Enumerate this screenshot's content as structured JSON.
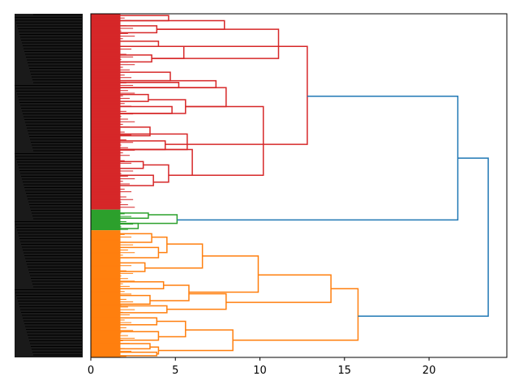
{
  "chart_data": {
    "type": "dendrogram",
    "orientation": "right",
    "title": "",
    "xlabel": "",
    "ylabel": "",
    "xlim": [
      0,
      24.6
    ],
    "xticks": [
      0,
      5,
      10,
      15,
      20
    ],
    "xtick_labels": [
      "0",
      "5",
      "10",
      "15",
      "20"
    ],
    "leaf_labels_legible": false,
    "clusters": [
      {
        "name": "cluster-red",
        "color": "#d62728",
        "leaf_span": [
          0.0,
          0.57
        ]
      },
      {
        "name": "cluster-green",
        "color": "#2ca02c",
        "leaf_span": [
          0.57,
          0.63
        ]
      },
      {
        "name": "cluster-orange",
        "color": "#ff7f0e",
        "leaf_span": [
          0.63,
          1.0
        ]
      }
    ],
    "above_threshold_color": "#1f77b4",
    "merges": [
      {
        "name": "red-a1",
        "color": "#d62728",
        "height": 4.6,
        "children": [
          0.005,
          0.02
        ]
      },
      {
        "name": "red-a2",
        "color": "#d62728",
        "height": 3.9,
        "children": [
          0.035,
          0.055
        ]
      },
      {
        "name": "red-a",
        "color": "#d62728",
        "height": 7.9,
        "children": [
          0.02,
          0.045
        ]
      },
      {
        "name": "red-b1",
        "color": "#d62728",
        "height": 4.0,
        "children": [
          0.08,
          0.095
        ]
      },
      {
        "name": "red-b2",
        "color": "#d62728",
        "height": 3.6,
        "children": [
          0.12,
          0.14
        ]
      },
      {
        "name": "red-b",
        "color": "#d62728",
        "height": 5.5,
        "children": [
          0.095,
          0.13
        ]
      },
      {
        "name": "red-ab",
        "color": "#d62728",
        "height": 11.1,
        "children": [
          0.045,
          0.13
        ]
      },
      {
        "name": "red-c1",
        "color": "#d62728",
        "height": 4.7,
        "children": [
          0.17,
          0.195
        ]
      },
      {
        "name": "red-c2",
        "color": "#d62728",
        "height": 5.2,
        "children": [
          0.2,
          0.215
        ]
      },
      {
        "name": "red-c",
        "color": "#d62728",
        "height": 7.4,
        "children": [
          0.195,
          0.215
        ]
      },
      {
        "name": "red-d1",
        "color": "#d62728",
        "height": 3.4,
        "children": [
          0.235,
          0.255
        ]
      },
      {
        "name": "red-d2",
        "color": "#d62728",
        "height": 4.8,
        "children": [
          0.27,
          0.29
        ]
      },
      {
        "name": "red-d",
        "color": "#d62728",
        "height": 5.6,
        "children": [
          0.25,
          0.29
        ]
      },
      {
        "name": "red-cd",
        "color": "#d62728",
        "height": 8.0,
        "children": [
          0.215,
          0.27
        ]
      },
      {
        "name": "red-e1",
        "color": "#d62728",
        "height": 3.5,
        "children": [
          0.33,
          0.355
        ]
      },
      {
        "name": "red-e2",
        "color": "#d62728",
        "height": 4.4,
        "children": [
          0.37,
          0.395
        ]
      },
      {
        "name": "red-e",
        "color": "#d62728",
        "height": 5.7,
        "children": [
          0.35,
          0.395
        ]
      },
      {
        "name": "red-f1",
        "color": "#d62728",
        "height": 3.1,
        "children": [
          0.43,
          0.45
        ]
      },
      {
        "name": "red-f2",
        "color": "#d62728",
        "height": 3.7,
        "children": [
          0.47,
          0.5
        ]
      },
      {
        "name": "red-f",
        "color": "#d62728",
        "height": 4.6,
        "children": [
          0.44,
          0.49
        ]
      },
      {
        "name": "red-ef",
        "color": "#d62728",
        "height": 6.0,
        "children": [
          0.395,
          0.47
        ]
      },
      {
        "name": "red-cdef",
        "color": "#d62728",
        "height": 10.2,
        "children": [
          0.27,
          0.47
        ]
      },
      {
        "name": "red-root",
        "color": "#d62728",
        "height": 12.8,
        "children": [
          0.095,
          0.38
        ]
      },
      {
        "name": "green-1",
        "color": "#2ca02c",
        "height": 3.4,
        "children": [
          0.58,
          0.595
        ]
      },
      {
        "name": "green-2",
        "color": "#2ca02c",
        "height": 2.8,
        "children": [
          0.61,
          0.625
        ]
      },
      {
        "name": "green-root",
        "color": "#2ca02c",
        "height": 5.1,
        "children": [
          0.585,
          0.61
        ]
      },
      {
        "name": "orange-a1",
        "color": "#ff7f0e",
        "height": 3.6,
        "children": [
          0.64,
          0.665
        ]
      },
      {
        "name": "orange-a2",
        "color": "#ff7f0e",
        "height": 4.0,
        "children": [
          0.68,
          0.71
        ]
      },
      {
        "name": "orange-a",
        "color": "#ff7f0e",
        "height": 4.5,
        "children": [
          0.65,
          0.695
        ]
      },
      {
        "name": "orange-b1",
        "color": "#ff7f0e",
        "height": 3.2,
        "children": [
          0.725,
          0.75
        ]
      },
      {
        "name": "orange-b",
        "color": "#ff7f0e",
        "height": 6.6,
        "children": [
          0.67,
          0.74
        ]
      },
      {
        "name": "orange-ab",
        "color": "#ff7f0e",
        "height": 9.9,
        "children": [
          0.705,
          0.81
        ]
      },
      {
        "name": "orange-c1",
        "color": "#ff7f0e",
        "height": 4.3,
        "children": [
          0.78,
          0.8
        ]
      },
      {
        "name": "orange-c2",
        "color": "#ff7f0e",
        "height": 3.5,
        "children": [
          0.82,
          0.845
        ]
      },
      {
        "name": "orange-c",
        "color": "#ff7f0e",
        "height": 5.8,
        "children": [
          0.79,
          0.835
        ]
      },
      {
        "name": "orange-d",
        "color": "#ff7f0e",
        "height": 4.5,
        "children": [
          0.85,
          0.87
        ]
      },
      {
        "name": "orange-cd",
        "color": "#ff7f0e",
        "height": 8.0,
        "children": [
          0.815,
          0.86
        ]
      },
      {
        "name": "orange-abcd",
        "color": "#ff7f0e",
        "height": 14.2,
        "children": [
          0.76,
          0.84
        ]
      },
      {
        "name": "orange-e1",
        "color": "#ff7f0e",
        "height": 3.9,
        "children": [
          0.885,
          0.905
        ]
      },
      {
        "name": "orange-e2",
        "color": "#ff7f0e",
        "height": 4.0,
        "children": [
          0.925,
          0.95
        ]
      },
      {
        "name": "orange-e",
        "color": "#ff7f0e",
        "height": 5.6,
        "children": [
          0.895,
          0.94
        ]
      },
      {
        "name": "orange-f1",
        "color": "#ff7f0e",
        "height": 3.5,
        "children": [
          0.96,
          0.975
        ]
      },
      {
        "name": "orange-f2",
        "color": "#ff7f0e",
        "height": 3.9,
        "children": [
          0.985,
          0.995
        ]
      },
      {
        "name": "orange-f",
        "color": "#ff7f0e",
        "height": 4.0,
        "children": [
          0.97,
          0.99
        ]
      },
      {
        "name": "orange-ef",
        "color": "#ff7f0e",
        "height": 8.4,
        "children": [
          0.92,
          0.98
        ]
      },
      {
        "name": "orange-root",
        "color": "#ff7f0e",
        "height": 15.8,
        "children": [
          0.8,
          0.95
        ]
      },
      {
        "name": "top-red-green",
        "color": "#1f77b4",
        "height": 21.7,
        "children": [
          0.24,
          0.6
        ]
      },
      {
        "name": "top-root",
        "color": "#1f77b4",
        "height": 23.5,
        "children": [
          0.42,
          0.88
        ]
      }
    ]
  }
}
